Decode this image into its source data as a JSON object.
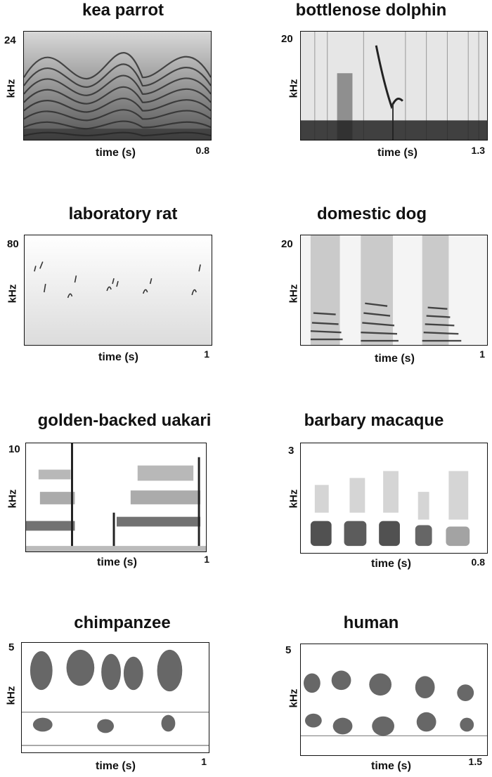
{
  "panels": [
    {
      "id": "kea-parrot",
      "title": "kea parrot",
      "y_max": "24",
      "y_unit": "kHz",
      "x_label": "time (s)",
      "x_max": "0.8"
    },
    {
      "id": "bottlenose-dolphin",
      "title": "bottlenose dolphin",
      "y_max": "20",
      "y_unit": "kHz",
      "x_label": "time (s)",
      "x_max": "1.3"
    },
    {
      "id": "laboratory-rat",
      "title": "laboratory rat",
      "y_max": "80",
      "y_unit": "kHz",
      "x_label": "time (s)",
      "x_max": "1"
    },
    {
      "id": "domestic-dog",
      "title": "domestic dog",
      "y_max": "20",
      "y_unit": "kHz",
      "x_label": "time (s)",
      "x_max": "1"
    },
    {
      "id": "golden-backed-uakari",
      "title": "golden-backed uakari",
      "y_max": "10",
      "y_unit": "kHz",
      "x_label": "time (s)",
      "x_max": "1"
    },
    {
      "id": "barbary-macaque",
      "title": "barbary macaque",
      "y_max": "3",
      "y_unit": "kHz",
      "x_label": "time (s)",
      "x_max": "0.8"
    },
    {
      "id": "chimpanzee",
      "title": "chimpanzee",
      "y_max": "5",
      "y_unit": "kHz",
      "x_label": "time (s)",
      "x_max": "1"
    },
    {
      "id": "human",
      "title": "human",
      "y_max": "5",
      "y_unit": "kHz",
      "x_label": "time (s)",
      "x_max": "1.5"
    }
  ]
}
